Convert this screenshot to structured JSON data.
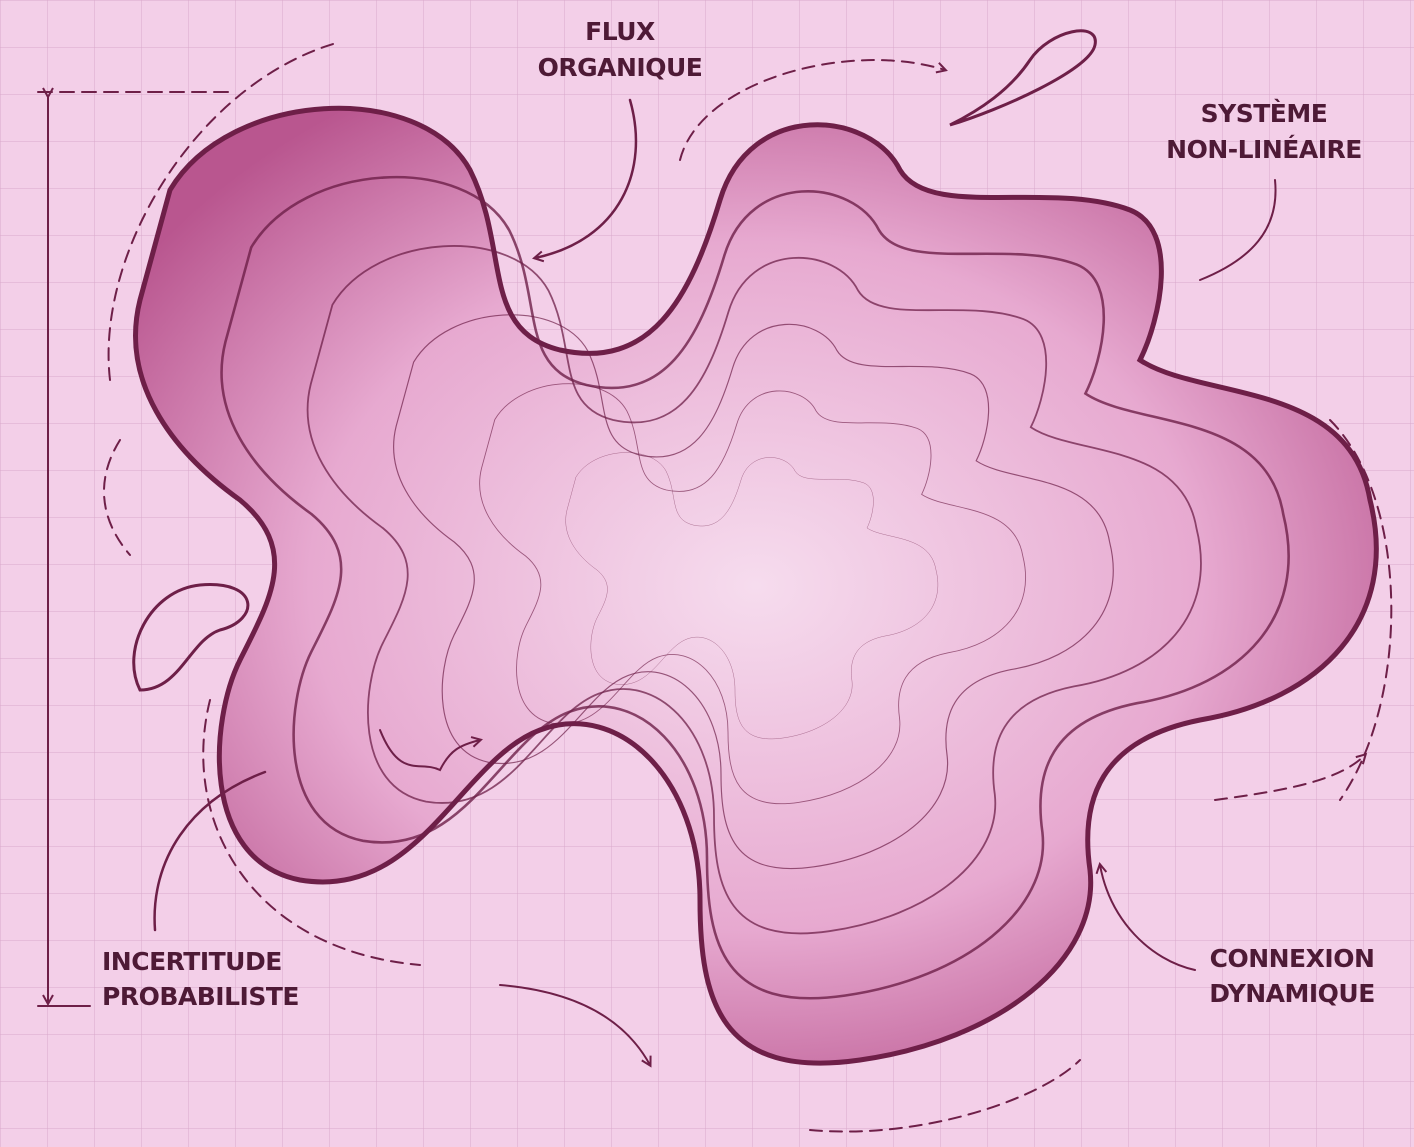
{
  "annotations": [
    {
      "lines": [
        "FLUX",
        "ORGANIQUE"
      ]
    },
    {
      "lines": [
        "SYSTÈME",
        "NON-LINÉAIRE"
      ]
    },
    {
      "lines": [
        "INCERTITUDE",
        "PROBABILISTE"
      ]
    },
    {
      "lines": [
        "CONNEXION",
        "DYNAMIQUE"
      ]
    }
  ]
}
